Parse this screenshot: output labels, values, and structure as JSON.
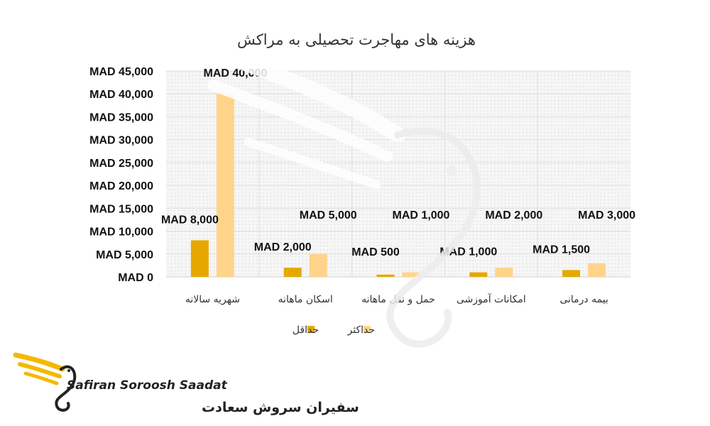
{
  "chart_data": {
    "type": "bar",
    "title": "هزینه های مهاجرت تحصیلی به مراکش",
    "categories": [
      "شهریه سالانه",
      "اسکان ماهانه",
      "حمل و نقل ماهانه",
      "امکانات آموزشی",
      "بیمه درمانی"
    ],
    "series": [
      {
        "name": "حداقل",
        "color": "#E6A800",
        "values": [
          8000,
          2000,
          500,
          1000,
          1500
        ],
        "labels": [
          "MAD 8,000",
          "MAD 2,000",
          "MAD 500",
          "MAD 1,000",
          "MAD 1,500"
        ]
      },
      {
        "name": "حداکثر",
        "color": "#FFD48A",
        "values": [
          40000,
          5000,
          1000,
          2000,
          3000
        ],
        "labels": [
          "MAD 40,000",
          "MAD 5,000",
          "MAD 1,000",
          "MAD 2,000",
          "MAD 3,000"
        ]
      }
    ],
    "ylim": [
      0,
      45000
    ],
    "yticks": [
      "MAD 0",
      "MAD 5,000",
      "MAD 10,000",
      "MAD 15,000",
      "MAD 20,000",
      "MAD 25,000",
      "MAD 30,000",
      "MAD 35,000",
      "MAD 40,000",
      "MAD 45,000"
    ],
    "legend_position": "bottom",
    "grid": true
  },
  "brand": {
    "name_en": "Safiran Soroosh Saadat",
    "name_fa": "سفیران سروش سعادت",
    "logo_icon": "swan-wing-logo",
    "accent": "#F5B800"
  }
}
